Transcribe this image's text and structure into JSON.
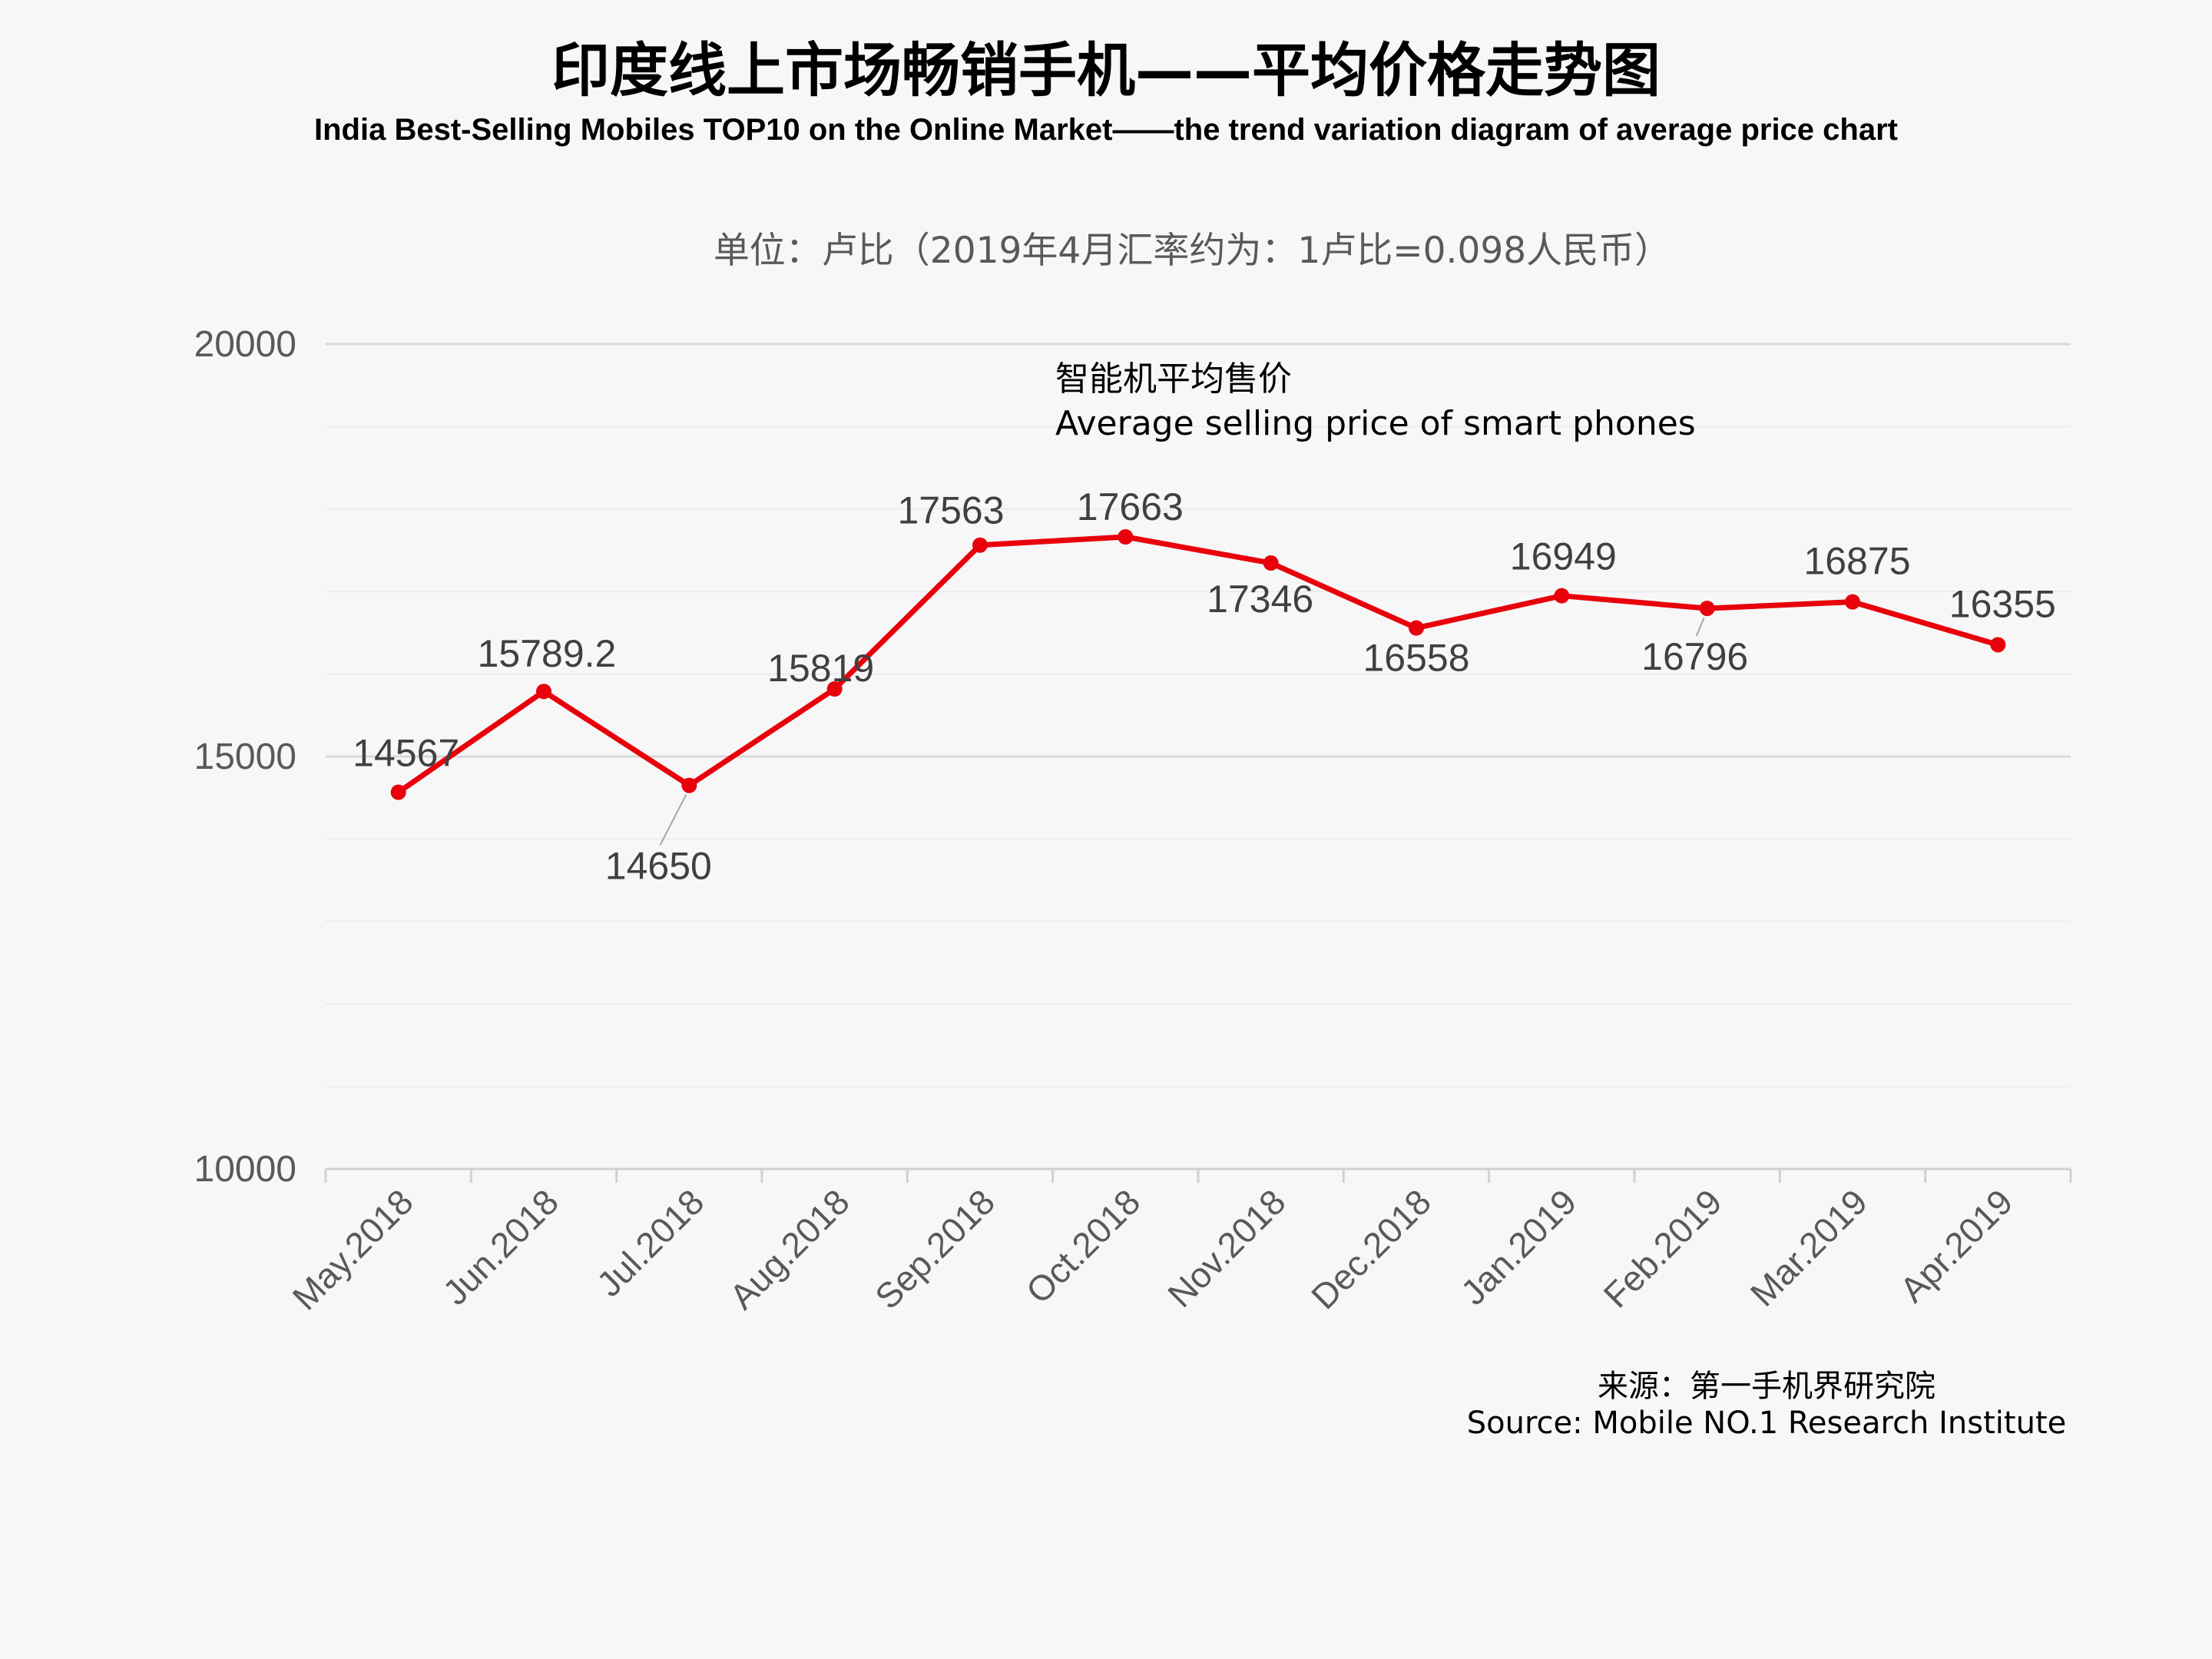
{
  "title_cn": "印度线上市场畅销手机——平均价格走势图",
  "title_en": "India Best-Selling  Mobiles TOP10 on the Online Market——the trend variation diagram of average price chart",
  "unit_note": "单位：卢比（2019年4月汇率约为：1卢比=0.098人民币）",
  "legend": {
    "line1": "智能机平均售价",
    "line2": "Average selling price of smart phones"
  },
  "source": {
    "line1": "来源：第一手机界研究院",
    "line2": "Source: Mobile NO.1 Research Institute"
  },
  "colors": {
    "line": "#e8000b",
    "axis_text": "#595959",
    "grid": "#d9d9d9",
    "minor_grid": "#ececec",
    "label_text": "#404040"
  },
  "chart_data": {
    "type": "line",
    "title": "印度线上市场畅销手机——平均价格走势图",
    "subtitle": "India Best-Selling  Mobiles TOP10 on the Online Market——the trend variation diagram of average price chart",
    "ylabel": "单位：卢比（2019年4月汇率约为：1卢比=0.098人民币）",
    "ylim": [
      10000,
      20000
    ],
    "yticks": [
      "10000",
      "15000",
      "20000"
    ],
    "grid": true,
    "categories": [
      "May.2018",
      "Jun.2018",
      "Jul.2018",
      "Aug.2018",
      "Sep.2018",
      "Oct.2018",
      "Nov.2018",
      "Dec.2018",
      "Jan.2019",
      "Feb.2019",
      "Mar.2019",
      "Apr.2019"
    ],
    "series": [
      {
        "values": [
          14567,
          15789.2,
          14650,
          15819,
          17563,
          17663,
          17346,
          16558,
          16949,
          16796,
          16875,
          16355
        ],
        "labels": [
          "14567",
          "15789.2",
          "14650",
          "15819",
          "17563",
          "17663",
          "17346",
          "16558",
          "16949",
          "16796",
          "16875",
          "16355"
        ]
      }
    ]
  }
}
